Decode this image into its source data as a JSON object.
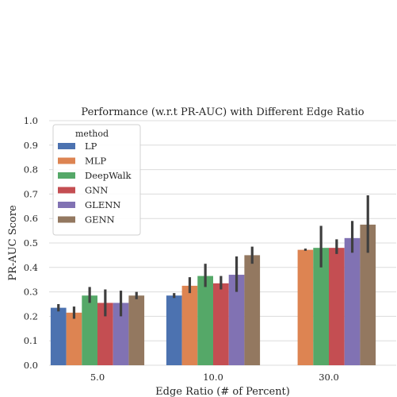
{
  "chart_data": {
    "type": "bar",
    "title": "Performance (w.r.t PR-AUC) with Different Edge Ratio",
    "xlabel": "Edge Ratio (# of Percent)",
    "ylabel": "PR-AUC Score",
    "ylim": [
      0.0,
      1.0
    ],
    "yticks": [
      "0.0",
      "0.1",
      "0.2",
      "0.3",
      "0.4",
      "0.5",
      "0.6",
      "0.7",
      "0.8",
      "0.9",
      "1.0"
    ],
    "grid": true,
    "legend_title": "method",
    "legend_position": "top-left",
    "categories": [
      "5.0",
      "10.0",
      "30.0"
    ],
    "series": [
      {
        "name": "LP",
        "color": "#4c72b0",
        "values": [
          0.235,
          0.285,
          null
        ],
        "err_low": [
          0.22,
          0.275,
          null
        ],
        "err_high": [
          0.25,
          0.295,
          null
        ]
      },
      {
        "name": "MLP",
        "color": "#dd8452",
        "values": [
          0.215,
          0.325,
          0.472
        ],
        "err_low": [
          0.19,
          0.295,
          0.468
        ],
        "err_high": [
          0.24,
          0.36,
          0.477
        ]
      },
      {
        "name": "DeepWalk",
        "color": "#55a868",
        "values": [
          0.285,
          0.365,
          0.48
        ],
        "err_low": [
          0.255,
          0.32,
          0.4
        ],
        "err_high": [
          0.32,
          0.415,
          0.57
        ]
      },
      {
        "name": "GNN",
        "color": "#c44e52",
        "values": [
          0.255,
          0.335,
          0.48
        ],
        "err_low": [
          0.2,
          0.31,
          0.455
        ],
        "err_high": [
          0.31,
          0.365,
          0.515
        ]
      },
      {
        "name": "GLENN",
        "color": "#8172b3",
        "values": [
          0.255,
          0.37,
          0.52
        ],
        "err_low": [
          0.2,
          0.3,
          0.46
        ],
        "err_high": [
          0.305,
          0.445,
          0.59
        ]
      },
      {
        "name": "GENN",
        "color": "#937860",
        "values": [
          0.285,
          0.45,
          0.575
        ],
        "err_low": [
          0.27,
          0.415,
          0.46
        ],
        "err_high": [
          0.3,
          0.485,
          0.695
        ]
      }
    ]
  }
}
